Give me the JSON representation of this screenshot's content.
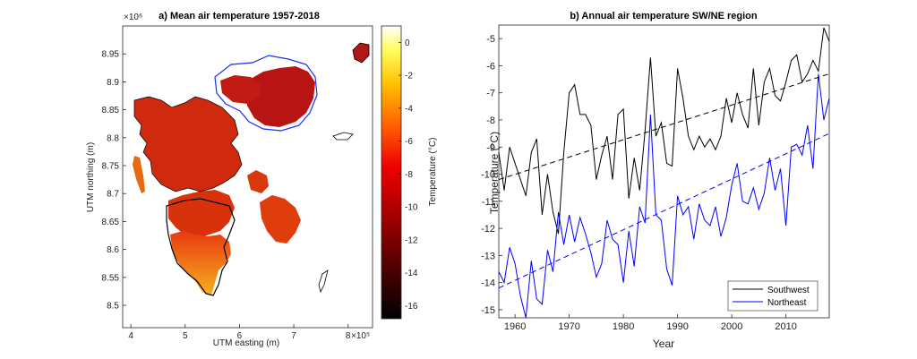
{
  "chart_data": [
    {
      "type": "heatmap",
      "title": "a) Mean air temperature 1957-2018",
      "xlabel": "UTM easting (m)",
      "ylabel": "UTM northing (m)",
      "x_exponent": "×10⁵",
      "y_exponent": "×10⁶",
      "xlim": [
        3.85,
        8.45
      ],
      "ylim": [
        8.46,
        9.0
      ],
      "x_ticks": [
        "4",
        "5",
        "6",
        "7",
        "8"
      ],
      "y_ticks": [
        "8.5",
        "8.55",
        "8.6",
        "8.65",
        "8.7",
        "8.75",
        "8.8",
        "8.85",
        "8.9",
        "8.95"
      ],
      "colorbar": {
        "label": "Temperature (°C)",
        "range": [
          -16.8,
          1.0
        ],
        "ticks": [
          "0",
          "-2",
          "-4",
          "-6",
          "-8",
          "-10",
          "-12",
          "-14",
          "-16"
        ]
      }
    },
    {
      "type": "line",
      "title": "b) Annual air temperature SW/NE region",
      "xlabel": "Year",
      "ylabel": "Temperature (°C)",
      "xlim": [
        1957,
        2018
      ],
      "ylim": [
        -15.3,
        -4.5
      ],
      "x_ticks": [
        "1960",
        "1970",
        "1980",
        "1990",
        "2000",
        "2010"
      ],
      "y_ticks": [
        "-5",
        "-6",
        "-7",
        "-8",
        "-9",
        "-10",
        "-11",
        "-12",
        "-13",
        "-14",
        "-15"
      ],
      "x": [
        1957,
        1958,
        1959,
        1960,
        1961,
        1962,
        1963,
        1964,
        1965,
        1966,
        1967,
        1968,
        1969,
        1970,
        1971,
        1972,
        1973,
        1974,
        1975,
        1976,
        1977,
        1978,
        1979,
        1980,
        1981,
        1982,
        1983,
        1984,
        1985,
        1986,
        1987,
        1988,
        1989,
        1990,
        1991,
        1992,
        1993,
        1994,
        1995,
        1996,
        1997,
        1998,
        1999,
        2000,
        2001,
        2002,
        2003,
        2004,
        2005,
        2006,
        2007,
        2008,
        2009,
        2010,
        2011,
        2012,
        2013,
        2014,
        2015,
        2016,
        2017,
        2018
      ],
      "series": [
        {
          "name": "Southwest",
          "color": "#000000",
          "values": [
            -9.2,
            -10.6,
            -9.0,
            -9.6,
            -10.2,
            -10.8,
            -9.2,
            -8.7,
            -11.5,
            -10.0,
            -11.4,
            -12.2,
            -9.2,
            -7.0,
            -6.7,
            -7.8,
            -7.8,
            -8.2,
            -10.2,
            -9.3,
            -8.6,
            -10.2,
            -7.8,
            -7.6,
            -10.9,
            -9.4,
            -10.6,
            -8.4,
            -5.7,
            -8.6,
            -8.1,
            -9.6,
            -9.7,
            -6.1,
            -7.2,
            -8.6,
            -9.1,
            -8.6,
            -9.0,
            -8.7,
            -9.1,
            -8.6,
            -7.2,
            -8.1,
            -7.0,
            -7.8,
            -8.3,
            -6.1,
            -8.2,
            -6.6,
            -6.1,
            -7.1,
            -7.3,
            -6.6,
            -5.8,
            -5.6,
            -6.6,
            -6.3,
            -5.8,
            -6.2,
            -4.6,
            -5.1
          ]
        },
        {
          "name": "Northeast",
          "color": "#0000ff",
          "values": [
            -13.6,
            -14.0,
            -12.7,
            -13.3,
            -14.5,
            -15.3,
            -13.2,
            -14.6,
            -14.8,
            -12.8,
            -13.6,
            -11.4,
            -12.6,
            -11.5,
            -12.5,
            -11.6,
            -12.2,
            -12.9,
            -13.8,
            -13.3,
            -11.7,
            -12.4,
            -12.6,
            -14.0,
            -12.1,
            -13.4,
            -11.2,
            -11.8,
            -7.8,
            -11.5,
            -11.7,
            -13.5,
            -14.1,
            -10.8,
            -11.5,
            -11.2,
            -12.4,
            -11.1,
            -11.7,
            -11.9,
            -11.2,
            -12.3,
            -11.6,
            -10.4,
            -9.6,
            -11.0,
            -11.1,
            -10.5,
            -11.3,
            -10.7,
            -9.4,
            -10.6,
            -9.8,
            -11.9,
            -9.0,
            -8.9,
            -9.3,
            -8.2,
            -9.8,
            -6.3,
            -8.0,
            -7.2
          ]
        }
      ],
      "trend_lines": [
        {
          "name": "Southwest trend",
          "x": [
            1957,
            2018
          ],
          "values": [
            -10.2,
            -6.3
          ],
          "color": "#000000",
          "style": "dashed"
        },
        {
          "name": "Northeast trend",
          "x": [
            1957,
            2018
          ],
          "values": [
            -14.2,
            -8.5
          ],
          "color": "#0000ff",
          "style": "dashed"
        }
      ],
      "legend": {
        "position": "bottom-right",
        "entries": [
          "Southwest",
          "Northeast"
        ]
      }
    }
  ]
}
